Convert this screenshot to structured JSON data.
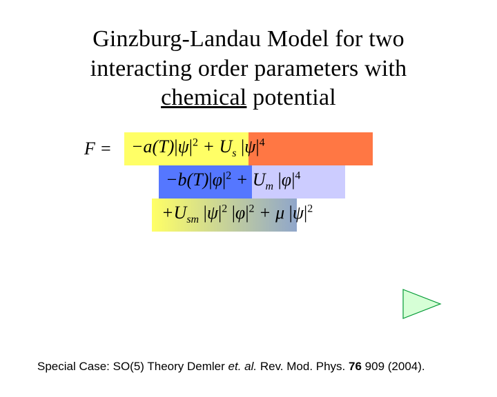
{
  "title": {
    "line1": "Ginzburg-Landau Model for two",
    "line2": "interacting order parameters with",
    "word_underlined": "chemical",
    "word_after": " potential"
  },
  "equation": {
    "lhs": "F =",
    "row1_html": "−<span class='ital'>a</span>(<span class='ital'>T</span>)<span class='bar'>|</span><span class='ital'>ψ</span><span class='bar'>|</span><span class='sup'>2</span> + <span class='ital'>U</span><span class='sub'>s</span> <span class='bar'>|</span><span class='ital'>ψ</span><span class='bar'>|</span><span class='sup'>4</span>",
    "row2_html": "−<span class='ital'>b</span>(<span class='ital'>T</span>)<span class='bar'>|</span><span class='ital'>φ</span><span class='bar'>|</span><span class='sup'>2</span> + <span class='ital'>U</span><span class='sub'>m</span> <span class='bar'>|</span><span class='ital'>φ</span><span class='bar'>|</span><span class='sup'>4</span>",
    "row3_html": "+<span class='ital'>U</span><span class='sub'>sm</span> <span class='bar'>|</span><span class='ital'>ψ</span><span class='bar'>|</span><span class='sup'>2</span> <span class='bar'>|</span><span class='ital'>φ</span><span class='bar'>|</span><span class='sup'>2</span> + <span class='ital'>μ</span> <span class='bar'>|</span><span class='ital'>ψ</span><span class='bar'>|</span><span class='sup'>2</span>"
  },
  "colors": {
    "row1_left": "#ffff66",
    "row1_right": "#ff7744",
    "row2_left": "#5577ff",
    "row2_right": "#ccccff",
    "row3_grad_from": "#ffff66",
    "row3_grad_to": "#5577ff",
    "play_fill": "#d6ffd6",
    "play_stroke": "#009933"
  },
  "footer": {
    "prefix": "Special Case: SO(5)  Theory Demler ",
    "etal": "et. al.",
    "suffix": " Rev. Mod. Phys. ",
    "vol": "76",
    "rest": " 909 (2004)."
  }
}
